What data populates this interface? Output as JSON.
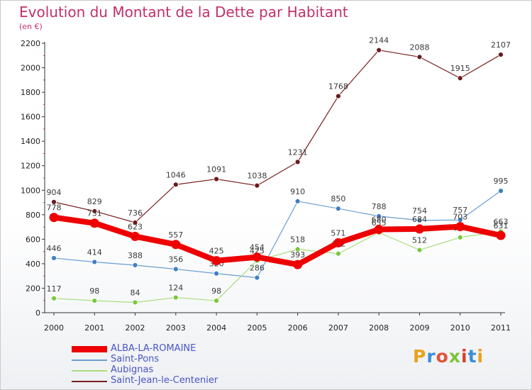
{
  "header": {
    "title": "Evolution du Montant de la Dette par Habitant",
    "subtitle": "(en €)"
  },
  "logo": {
    "text": "Proxiti",
    "colors": [
      "#e8a21a",
      "#3a8fd8",
      "#e0533a",
      "#7cc43a",
      "#d8402a",
      "#3a8fd8",
      "#e8a21a"
    ]
  },
  "colors": {
    "title": "#c0306c",
    "legend_text": "#4a55c8"
  },
  "chart_data": {
    "type": "line",
    "title": "Evolution du Montant de la Dette par Habitant",
    "subtitle": "(en €)",
    "xlabel": "",
    "ylabel": "",
    "categories": [
      "2000",
      "2001",
      "2002",
      "2003",
      "2004",
      "2005",
      "2006",
      "2007",
      "2008",
      "2009",
      "2010",
      "2011"
    ],
    "ylim": [
      0,
      2200
    ],
    "yticks": [
      0,
      200,
      400,
      600,
      800,
      1000,
      1200,
      1400,
      1600,
      1800,
      2000,
      2200
    ],
    "grid": false,
    "legend_position": "bottom-left",
    "series": [
      {
        "name": "Saint-Jean-le-Centenier",
        "color": "#7a1f1f",
        "marker": "#6b1a1a",
        "width": 1.2,
        "values": [
          904,
          829,
          736,
          1046,
          1091,
          1038,
          1231,
          1768,
          2144,
          2088,
          1915,
          2107
        ]
      },
      {
        "name": "Saint-Pons",
        "color": "#6a9ecf",
        "marker": "#3f7fc0",
        "width": 1.2,
        "values": [
          446,
          414,
          388,
          356,
          320,
          286,
          910,
          850,
          788,
          754,
          757,
          995
        ]
      },
      {
        "name": "Aubignas",
        "color": "#a8de7c",
        "marker": "#78c83a",
        "width": 1.2,
        "values": [
          117,
          98,
          84,
          124,
          98,
          425,
          518,
          482,
          655,
          512,
          615,
          663
        ]
      },
      {
        "name": "ALBA-LA-ROMAINE",
        "color": "#ee0000",
        "marker": "#ee0000",
        "width": 8,
        "values": [
          778,
          731,
          623,
          557,
          425,
          454,
          393,
          571,
          680,
          684,
          703,
          631
        ]
      }
    ],
    "legend_order": [
      "ALBA-LA-ROMAINE",
      "Saint-Pons",
      "Aubignas",
      "Saint-Jean-le-Centenier"
    ]
  }
}
